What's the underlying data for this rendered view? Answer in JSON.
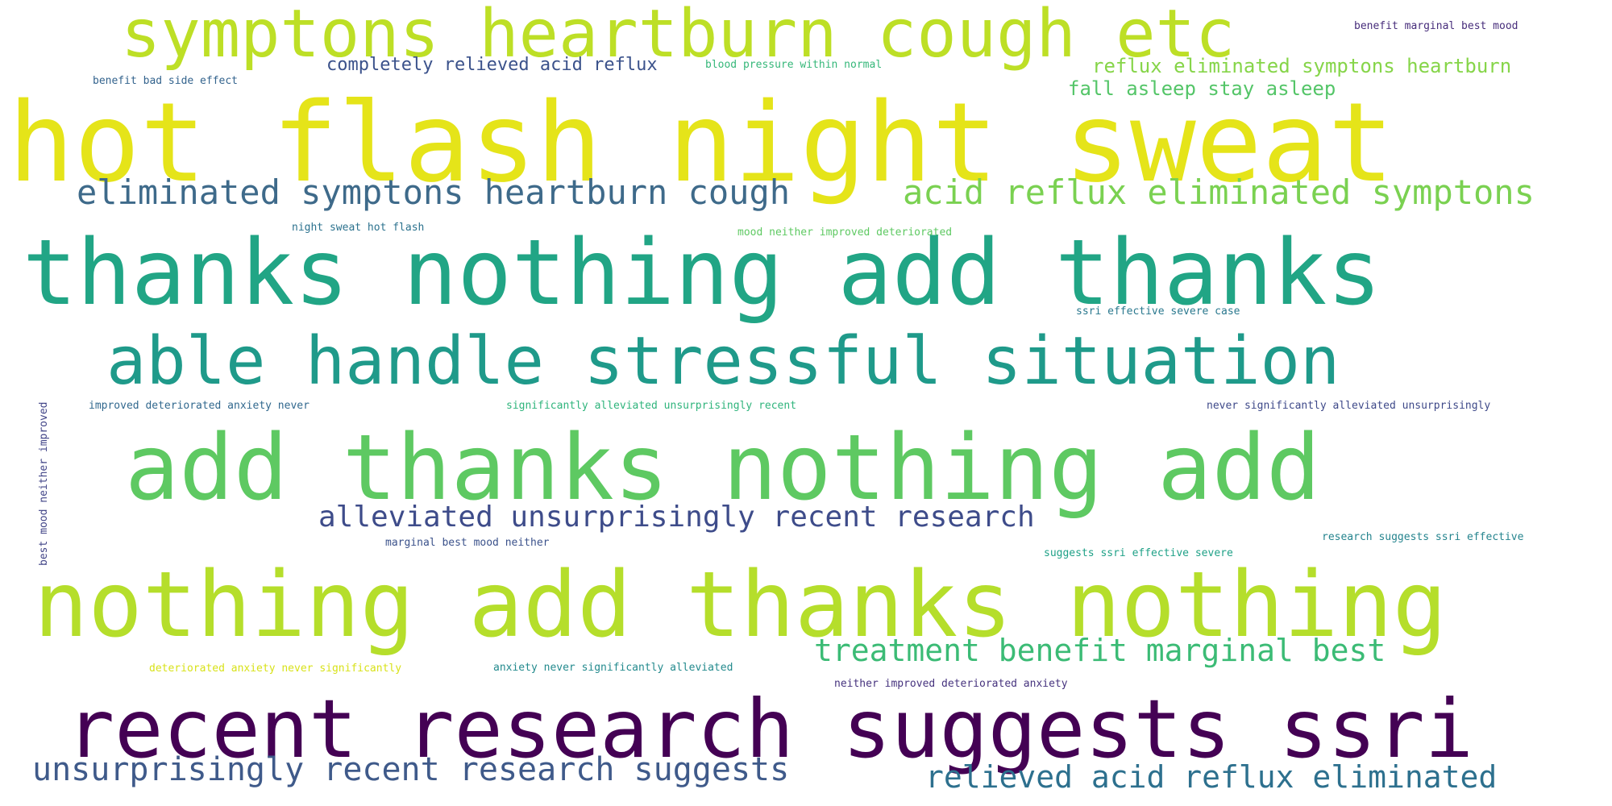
{
  "words": [
    {
      "text": "symptons heartburn cough etc",
      "color": "#bddf26"
    },
    {
      "text": "benefit marginal best mood",
      "color": "#472d7b"
    },
    {
      "text": "completely relieved acid reflux",
      "color": "#3b528b"
    },
    {
      "text": "blood pressure within normal",
      "color": "#35b779"
    },
    {
      "text": "reflux eliminated symptons heartburn",
      "color": "#86d549"
    },
    {
      "text": "benefit bad side effect",
      "color": "#33638d"
    },
    {
      "text": "fall asleep stay asleep",
      "color": "#54c568"
    },
    {
      "text": "hot flash night sweat",
      "color": "#e5e419"
    },
    {
      "text": "eliminated symptons heartburn cough",
      "color": "#3e6a8a"
    },
    {
      "text": "acid reflux eliminated symptons",
      "color": "#7ad151"
    },
    {
      "text": "night sweat hot flash",
      "color": "#2c728e"
    },
    {
      "text": "mood neither improved deteriorated",
      "color": "#5ec962"
    },
    {
      "text": "thanks nothing add thanks",
      "color": "#21a585"
    },
    {
      "text": "ssri effective severe case",
      "color": "#2a788e"
    },
    {
      "text": "able handle stressful situation",
      "color": "#1f9a8a"
    },
    {
      "text": "improved deteriorated anxiety never",
      "color": "#31688e"
    },
    {
      "text": "significantly alleviated unsurprisingly recent",
      "color": "#2fb47c"
    },
    {
      "text": "never significantly alleviated unsurprisingly",
      "color": "#3e4989"
    },
    {
      "text": "add thanks nothing add",
      "color": "#5ec962"
    },
    {
      "text": "best mood neither improved",
      "color": "#414487"
    },
    {
      "text": "alleviated unsurprisingly recent research",
      "color": "#3e4c8a"
    },
    {
      "text": "marginal best mood neither",
      "color": "#3b528b"
    },
    {
      "text": "research suggests ssri effective",
      "color": "#25848e"
    },
    {
      "text": "suggests ssri effective severe",
      "color": "#1fa187"
    },
    {
      "text": "nothing add thanks nothing",
      "color": "#b5de2b"
    },
    {
      "text": "treatment benefit marginal best",
      "color": "#3bbb75"
    },
    {
      "text": "deteriorated anxiety never significantly",
      "color": "#d8e219"
    },
    {
      "text": "anxiety never significantly alleviated",
      "color": "#238a8d"
    },
    {
      "text": "neither improved deteriorated anxiety",
      "color": "#46337e"
    },
    {
      "text": "recent research suggests ssri",
      "color": "#440154"
    },
    {
      "text": "unsurprisingly recent research suggests",
      "color": "#3f5a8a"
    },
    {
      "text": "relieved acid reflux eliminated",
      "color": "#2d708e"
    }
  ]
}
